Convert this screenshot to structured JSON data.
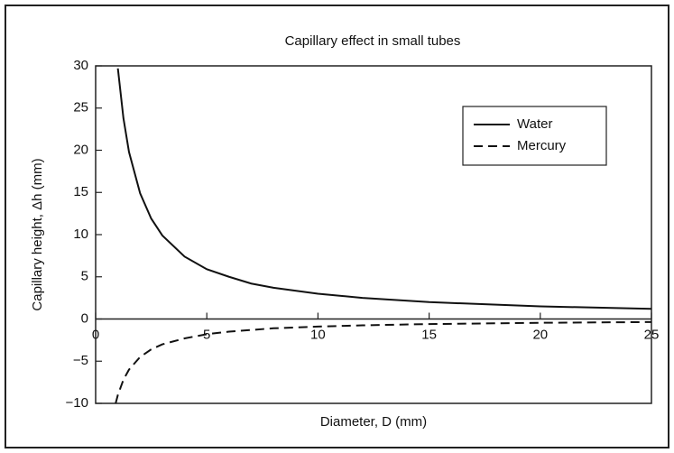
{
  "chart_data": {
    "type": "line",
    "title": "Capillary effect in small tubes",
    "xlabel": "Diameter, D (mm)",
    "ylabel": "Capillary height, Δh (mm)",
    "x": [
      0.9,
      1,
      1.25,
      1.5,
      2,
      2.5,
      3,
      4,
      5,
      6,
      7,
      8,
      10,
      12,
      15,
      20,
      25
    ],
    "series": [
      {
        "name": "Water",
        "color": "#111111",
        "dash": false,
        "values": [
          null,
          29.7,
          23.8,
          19.8,
          14.9,
          11.9,
          9.9,
          7.4,
          5.9,
          5.0,
          4.2,
          3.7,
          3.0,
          2.5,
          2.0,
          1.5,
          1.2
        ]
      },
      {
        "name": "Mercury",
        "color": "#111111",
        "dash": true,
        "values": [
          -10.0,
          -9.0,
          -7.2,
          -6.0,
          -4.5,
          -3.6,
          -3.0,
          -2.3,
          -1.8,
          -1.5,
          -1.3,
          -1.1,
          -0.9,
          -0.75,
          -0.6,
          -0.45,
          -0.36
        ]
      }
    ],
    "xlim": [
      0,
      25
    ],
    "xticks": [
      0,
      5,
      10,
      15,
      20,
      25
    ],
    "ylim": [
      -10,
      30
    ],
    "yticks": [
      {
        "value": -10,
        "label": "−10"
      },
      {
        "value": -5,
        "label": "−5"
      },
      0,
      5,
      10,
      15,
      20,
      25,
      30
    ],
    "legend": "upper right",
    "grid": false
  }
}
